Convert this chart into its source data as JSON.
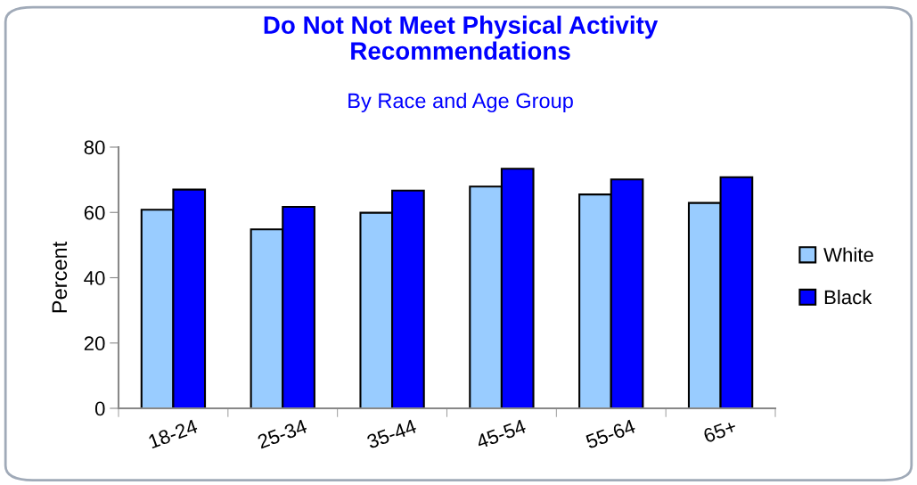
{
  "chart_data": {
    "type": "bar",
    "title": "Do Not Not Meet Physical Activity\nRecommendations",
    "subtitle": "By Race and Age Group",
    "ylabel": "Percent",
    "categories": [
      "18-24",
      "25-34",
      "35-44",
      "45-54",
      "55-64",
      "65+"
    ],
    "series": [
      {
        "name": "White",
        "color": "#99ccff",
        "values": [
          60.8,
          54.8,
          59.9,
          67.9,
          65.5,
          62.9
        ]
      },
      {
        "name": "Black",
        "color": "#0000ff",
        "values": [
          67.0,
          61.7,
          66.7,
          73.4,
          70.1,
          70.8
        ]
      }
    ],
    "ylim": [
      0,
      80
    ],
    "yticks": [
      0,
      20,
      40,
      60,
      80
    ],
    "grid": false,
    "legend": "right"
  }
}
